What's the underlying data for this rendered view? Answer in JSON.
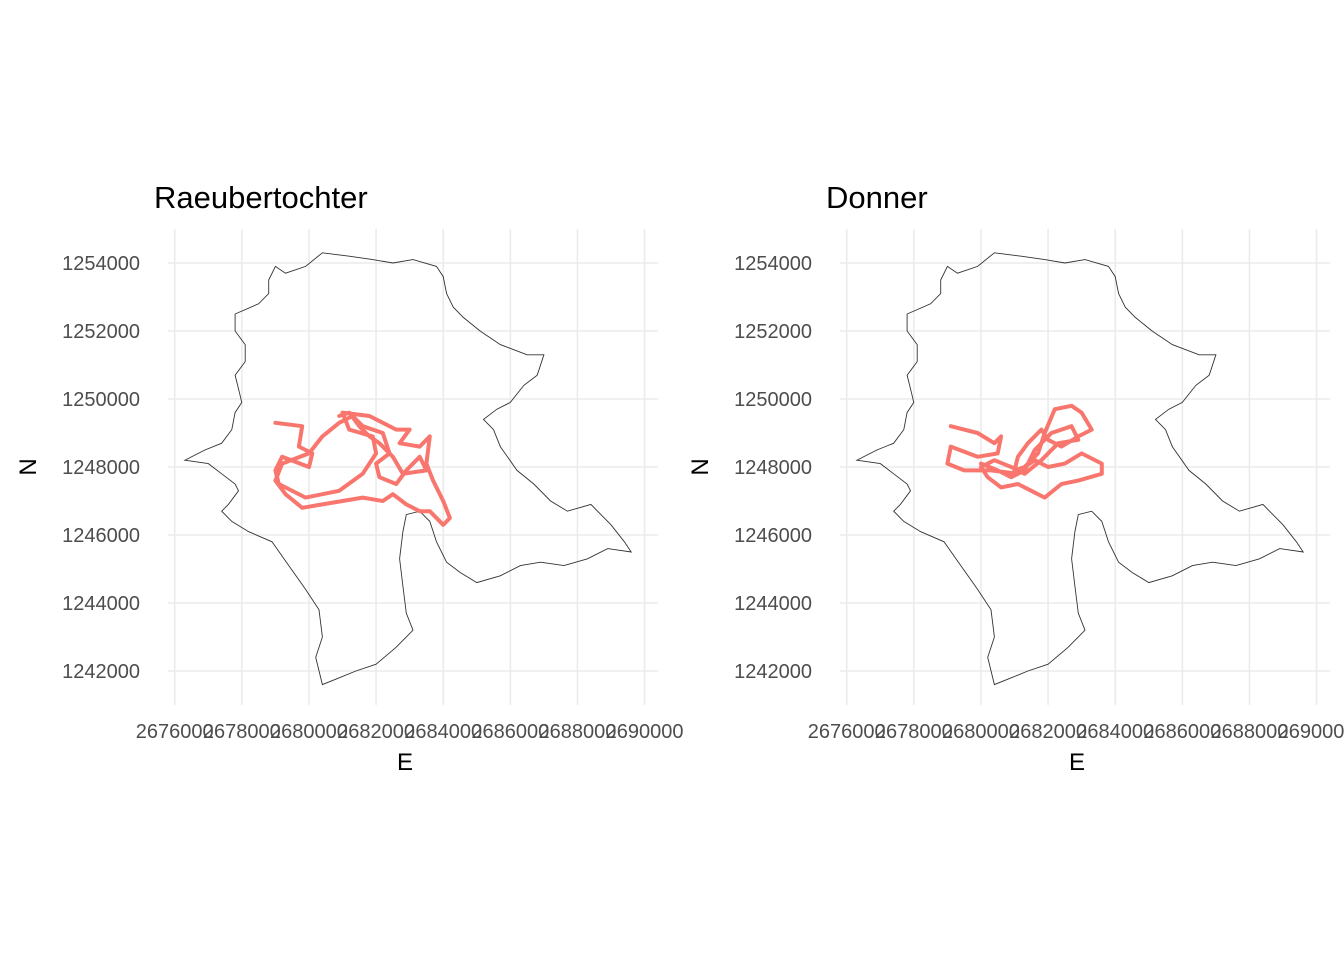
{
  "chart_data": [
    {
      "type": "line",
      "title": "Raeubertochter",
      "xlabel": "E",
      "ylabel": "N",
      "xlim": [
        2675800,
        2690400
      ],
      "ylim": [
        1241000,
        1255000
      ],
      "x_ticks": [
        2676000,
        2678000,
        2680000,
        2682000,
        2684000,
        2686000,
        2688000,
        2690000
      ],
      "y_ticks": [
        1242000,
        1244000,
        1246000,
        1248000,
        1250000,
        1252000,
        1254000
      ],
      "x_tick_labels": [
        "2676000",
        "2678000",
        "2680000",
        "2682000",
        "2684000",
        "2686000",
        "2688000",
        "2690000"
      ],
      "y_tick_labels": [
        "1242000",
        "1244000",
        "1246000",
        "1248000",
        "1250000",
        "1252000",
        "1254000"
      ],
      "grid": true,
      "boundary_color": "#333333",
      "track_color": "#f8766d",
      "series": [
        {
          "x": [
            2679000,
            2679800,
            2679700,
            2680100,
            2680000,
            2679200,
            2679000,
            2679100,
            2679900,
            2680900,
            2681600,
            2682000,
            2681900,
            2681200,
            2681000,
            2681800,
            2682600,
            2683000,
            2682700,
            2683300,
            2683600,
            2683500,
            2683700,
            2684000,
            2684200,
            2684000,
            2683600,
            2683300,
            2682900,
            2682500,
            2682200,
            2681600,
            2681000,
            2680400,
            2679800,
            2679300,
            2679000,
            2679200,
            2680000,
            2680400,
            2680900,
            2681300,
            2681600,
            2682200,
            2682400,
            2682000,
            2682100,
            2682600,
            2682900,
            2683300,
            2683500,
            2682800,
            2682500,
            2682100,
            2681800,
            2681500,
            2681200,
            2680900
          ],
          "y": [
            1249300,
            1249200,
            1248600,
            1248400,
            1248000,
            1248300,
            1247900,
            1247500,
            1247100,
            1247300,
            1247800,
            1248400,
            1248900,
            1249100,
            1249600,
            1249500,
            1249100,
            1249100,
            1248700,
            1248600,
            1248900,
            1248100,
            1247600,
            1247000,
            1246500,
            1246300,
            1246700,
            1246700,
            1246900,
            1247200,
            1247000,
            1247100,
            1247000,
            1246900,
            1246800,
            1247200,
            1247600,
            1248100,
            1248400,
            1248900,
            1249300,
            1249500,
            1249200,
            1249000,
            1248400,
            1248100,
            1247700,
            1247500,
            1247900,
            1248300,
            1247900,
            1247800,
            1248300,
            1248700,
            1248900,
            1249200,
            1249600,
            1249500
          ]
        }
      ]
    },
    {
      "type": "line",
      "title": "Donner",
      "xlabel": "E",
      "ylabel": "N",
      "xlim": [
        2675800,
        2690400
      ],
      "ylim": [
        1241000,
        1255000
      ],
      "x_ticks": [
        2676000,
        2678000,
        2680000,
        2682000,
        2684000,
        2686000,
        2688000,
        2690000
      ],
      "y_ticks": [
        1242000,
        1244000,
        1246000,
        1248000,
        1250000,
        1252000,
        1254000
      ],
      "x_tick_labels": [
        "2676000",
        "2678000",
        "2680000",
        "2682000",
        "2684000",
        "2686000",
        "2688000",
        "2690000"
      ],
      "y_tick_labels": [
        "1242000",
        "1244000",
        "1246000",
        "1248000",
        "1250000",
        "1252000",
        "1254000"
      ],
      "grid": true,
      "boundary_color": "#333333",
      "track_color": "#f8766d",
      "series": [
        {
          "x": [
            2679100,
            2679900,
            2680400,
            2680600,
            2680500,
            2679900,
            2679100,
            2679000,
            2679500,
            2680300,
            2681100,
            2681700,
            2681900,
            2682200,
            2682700,
            2683000,
            2683300,
            2682900,
            2682400,
            2682000,
            2681800,
            2681400,
            2681100,
            2681000,
            2681300,
            2681600,
            2682000,
            2682500,
            2683000,
            2683600,
            2683600,
            2682900,
            2682400,
            2681900,
            2681500,
            2681100,
            2680600,
            2680200,
            2680000,
            2680400,
            2680900,
            2681300,
            2681800,
            2682300,
            2682900,
            2682700,
            2682100,
            2681600,
            2681300,
            2680900,
            2680500,
            2680000
          ],
          "y": [
            1249200,
            1249000,
            1248700,
            1248900,
            1248400,
            1248300,
            1248600,
            1248100,
            1247900,
            1247900,
            1247800,
            1248400,
            1249000,
            1249700,
            1249800,
            1249600,
            1249100,
            1248900,
            1248600,
            1248800,
            1249100,
            1248700,
            1248300,
            1247900,
            1248000,
            1248200,
            1248000,
            1248100,
            1248400,
            1248100,
            1247800,
            1247600,
            1247500,
            1247100,
            1247300,
            1247500,
            1247400,
            1247700,
            1248000,
            1248200,
            1248000,
            1247800,
            1248200,
            1248700,
            1248800,
            1249200,
            1249000,
            1248500,
            1247900,
            1247700,
            1247900,
            1248100
          ]
        }
      ]
    }
  ]
}
